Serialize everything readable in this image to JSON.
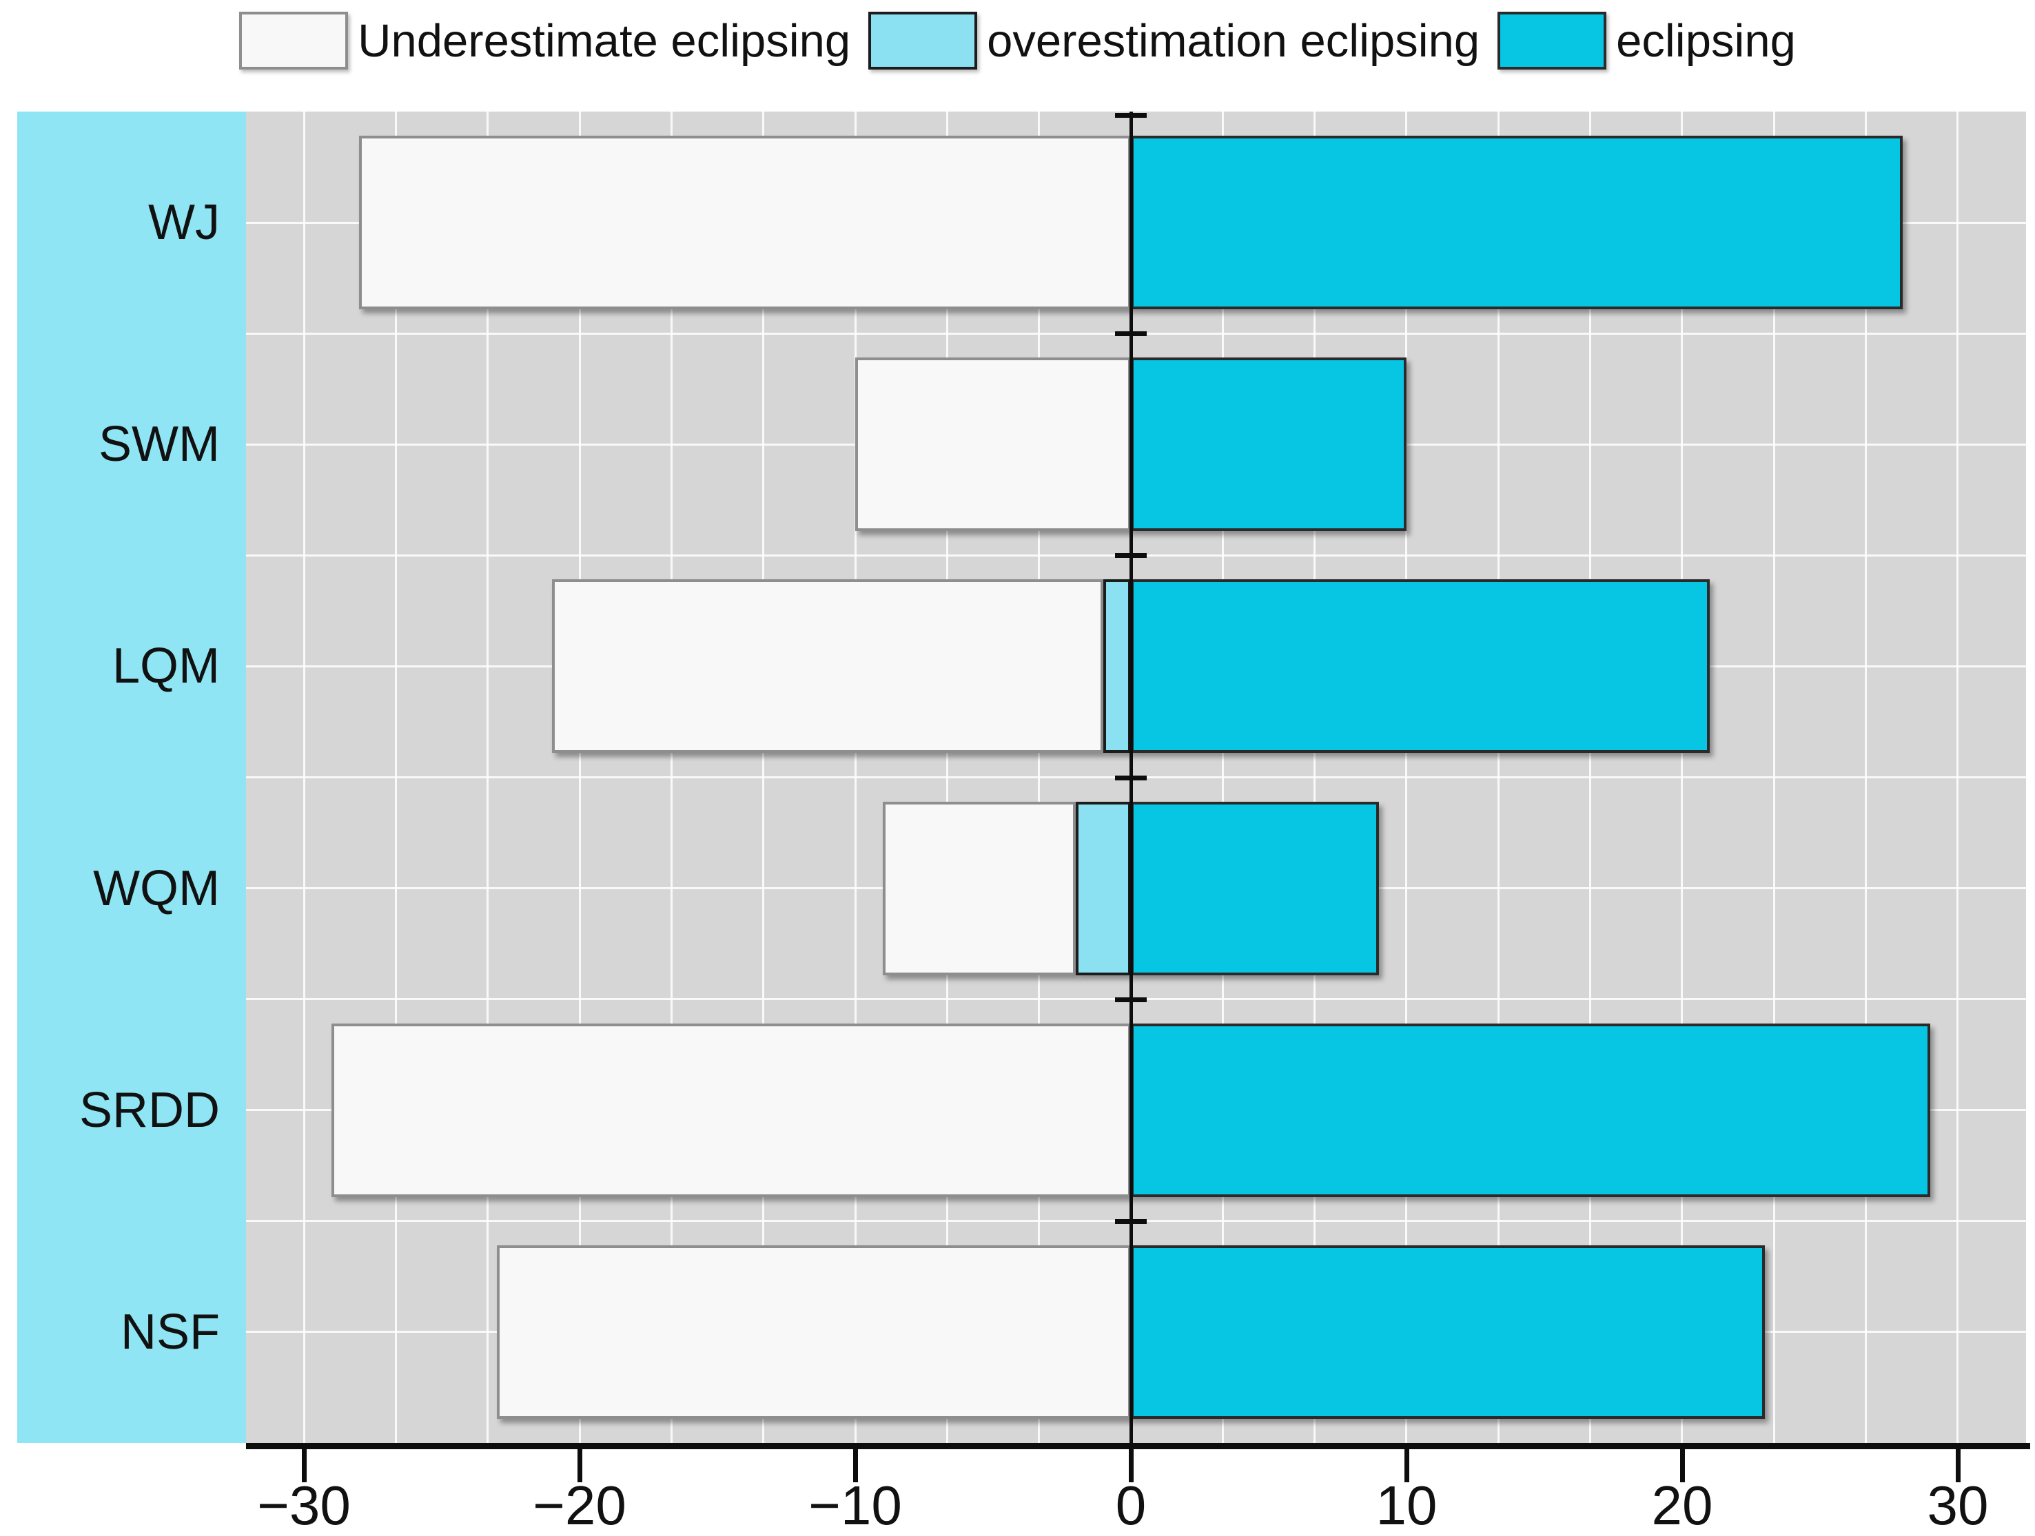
{
  "legend": {
    "items": [
      {
        "label": "Underestimate eclipsing",
        "color": "#F8F8F8",
        "border": "#8E8E8E"
      },
      {
        "label": "overestimation eclipsing",
        "color": "#8BE0F1",
        "border": "#1C1C1C"
      },
      {
        "label": "eclipsing",
        "color": "#07C6E4",
        "border": "#2A2A2A"
      }
    ]
  },
  "chart_data": {
    "type": "bar",
    "orientation": "horizontal-diverging",
    "title": "",
    "xlabel": "",
    "ylabel": "",
    "categories": [
      "WJ",
      "SWM",
      "LQM",
      "WQM",
      "SRDD",
      "NSF"
    ],
    "series": [
      {
        "name": "Underestimate eclipsing",
        "color": "#F8F8F8",
        "border": "#8E8E8E",
        "spans": [
          [
            -28,
            0
          ],
          [
            -10,
            0
          ],
          [
            -21,
            -1
          ],
          [
            -9,
            -2
          ],
          [
            -29,
            0
          ],
          [
            -23,
            0
          ]
        ]
      },
      {
        "name": "overestimation eclipsing",
        "color": "#8BE0F1",
        "border": "#1C1C1C",
        "spans": [
          [
            0,
            0
          ],
          [
            0,
            0
          ],
          [
            -1,
            0
          ],
          [
            -2,
            0
          ],
          [
            0,
            0
          ],
          [
            0,
            0
          ]
        ]
      },
      {
        "name": "eclipsing",
        "color": "#07C6E4",
        "border": "#2A2A2A",
        "spans": [
          [
            0,
            28
          ],
          [
            0,
            10
          ],
          [
            0,
            21
          ],
          [
            0,
            9
          ],
          [
            0,
            29
          ],
          [
            0,
            23
          ]
        ]
      }
    ],
    "xticks": [
      -30,
      -20,
      -10,
      0,
      10,
      20,
      30
    ],
    "xtick_labels": [
      "−30",
      "−20",
      "−10",
      "0",
      "10",
      "20",
      "30"
    ],
    "xlim": [
      -32.1,
      32.475
    ],
    "grid": {
      "vertical_step": 3.3333,
      "horizontal_divisions_per_row": 2,
      "color": "#FFFFFF"
    },
    "colors": {
      "plot_bg": "#D6D6D6",
      "category_band": "#8FE5F4",
      "axis": "#0D0D0D",
      "zero_line": "#0D0D0D"
    },
    "legend_position": "top"
  }
}
